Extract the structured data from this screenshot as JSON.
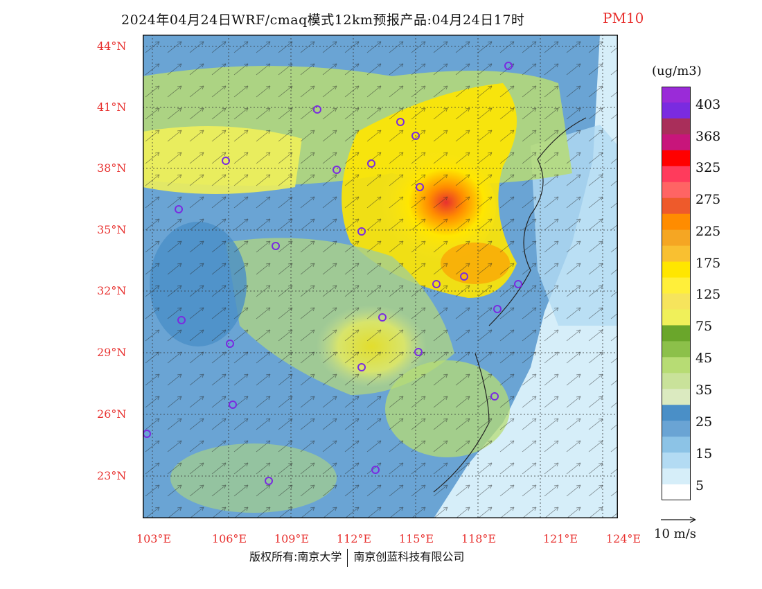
{
  "header": {
    "title": "2024年04月24日WRF/cmaq模式12km预报产品:04月24日17时",
    "variable": "PM10"
  },
  "map": {
    "lat_ticks": [
      "44°N",
      "41°N",
      "38°N",
      "35°N",
      "32°N",
      "29°N",
      "26°N",
      "23°N"
    ],
    "lon_ticks": [
      "103°E",
      "106°E",
      "109°E",
      "112°E",
      "115°E",
      "118°E",
      "121°E",
      "124°E"
    ],
    "colors": {
      "ocean": "#e6f4fb",
      "low": "#4a8fc7",
      "mid": "#a8d08a",
      "high": "#f3e020",
      "peak": "#e8312f",
      "marker": "#7a2be0"
    }
  },
  "legend": {
    "unit": "(ug/m3)",
    "labels": [
      "403",
      "368",
      "325",
      "275",
      "225",
      "175",
      "125",
      "75",
      "45",
      "35",
      "25",
      "15",
      "5"
    ],
    "colors": [
      "#9a2bd8",
      "#7a2be0",
      "#a92e5a",
      "#c8157b",
      "#ff0000",
      "#ff3b5c",
      "#ff6464",
      "#ee5a2b",
      "#ff8c00",
      "#f5a623",
      "#f9c031",
      "#ffe600",
      "#ffef3a",
      "#f6e45c",
      "#f0f05a",
      "#6aa62b",
      "#8cc04a",
      "#b7dc74",
      "#c9e29a",
      "#dbeac0",
      "#4a8fc7",
      "#6aa4d4",
      "#8cc3e6",
      "#b3dbf3",
      "#d6eef9",
      "#ffffff"
    ]
  },
  "vector_ref": {
    "label": "10 m/s"
  },
  "footer": {
    "left": "版权所有:南京大学",
    "right": "南京创蓝科技有限公司"
  }
}
